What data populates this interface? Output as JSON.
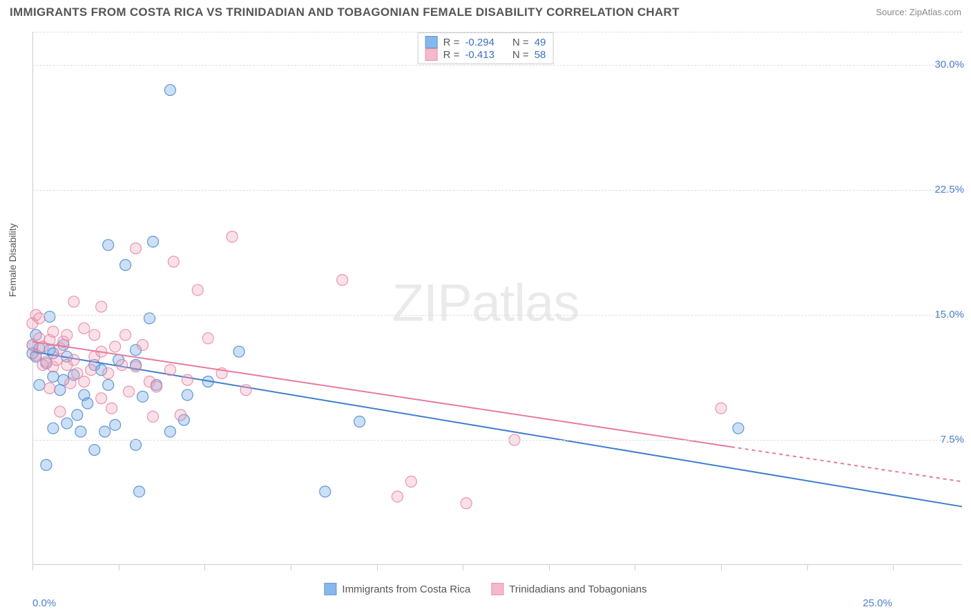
{
  "chart": {
    "type": "scatter",
    "title": "IMMIGRANTS FROM COSTA RICA VS TRINIDADIAN AND TOBAGONIAN FEMALE DISABILITY CORRELATION CHART",
    "source_label": "Source:",
    "source_link_text": "ZipAtlas.com",
    "ylabel": "Female Disability",
    "watermark": "ZIPatlas",
    "background_color": "#ffffff",
    "grid_color": "#dddddd",
    "axis_color": "#cccccc",
    "tick_label_color": "#4a7ec9",
    "label_color": "#555555",
    "title_fontsize": 17,
    "label_fontsize": 14,
    "tick_fontsize": 15,
    "xlim": [
      0,
      27
    ],
    "ylim": [
      0,
      32
    ],
    "yticks": [
      {
        "value": 7.5,
        "label": "7.5%"
      },
      {
        "value": 15.0,
        "label": "15.0%"
      },
      {
        "value": 22.5,
        "label": "22.5%"
      },
      {
        "value": 30.0,
        "label": "30.0%"
      }
    ],
    "xticks_minor_values": [
      0,
      2.5,
      5,
      7.5,
      10,
      12.5,
      15,
      17.5,
      20,
      22.5,
      25
    ],
    "xaxis_labels": [
      {
        "value": 0,
        "label": "0.0%"
      },
      {
        "value": 25,
        "label": "25.0%"
      }
    ],
    "marker_radius": 8,
    "marker_fill_opacity": 0.35,
    "regression_line_width": 2,
    "series": [
      {
        "id": "costa_rica",
        "name": "Immigrants from Costa Rica",
        "color": "#6aa6e8",
        "stroke": "#3f7ec9",
        "r_label": "R =",
        "r_value": "-0.294",
        "n_label": "N =",
        "n_value": "49",
        "regression": {
          "x1": 0,
          "y1": 12.8,
          "x2": 27,
          "y2": 3.5,
          "dashed_from_x": null
        },
        "points": [
          [
            0.0,
            12.7
          ],
          [
            0.0,
            13.2
          ],
          [
            0.1,
            12.5
          ],
          [
            0.1,
            13.8
          ],
          [
            0.2,
            10.8
          ],
          [
            0.2,
            13.0
          ],
          [
            0.4,
            6.0
          ],
          [
            0.4,
            12.1
          ],
          [
            0.5,
            14.9
          ],
          [
            0.5,
            12.9
          ],
          [
            0.6,
            8.2
          ],
          [
            0.6,
            11.3
          ],
          [
            0.6,
            12.7
          ],
          [
            0.8,
            10.5
          ],
          [
            0.9,
            11.1
          ],
          [
            0.9,
            13.2
          ],
          [
            1.0,
            8.5
          ],
          [
            1.0,
            12.5
          ],
          [
            1.2,
            11.4
          ],
          [
            1.3,
            9.0
          ],
          [
            1.4,
            8.0
          ],
          [
            1.5,
            10.2
          ],
          [
            1.6,
            9.7
          ],
          [
            1.8,
            6.9
          ],
          [
            1.8,
            12.0
          ],
          [
            2.0,
            11.7
          ],
          [
            2.1,
            8.0
          ],
          [
            2.2,
            10.8
          ],
          [
            2.2,
            19.2
          ],
          [
            2.4,
            8.4
          ],
          [
            2.5,
            12.3
          ],
          [
            2.7,
            18.0
          ],
          [
            3.0,
            7.2
          ],
          [
            3.0,
            12.0
          ],
          [
            3.0,
            12.9
          ],
          [
            3.1,
            4.4
          ],
          [
            3.2,
            10.1
          ],
          [
            3.4,
            14.8
          ],
          [
            3.5,
            19.4
          ],
          [
            3.6,
            10.8
          ],
          [
            4.0,
            8.0
          ],
          [
            4.0,
            28.5
          ],
          [
            4.4,
            8.7
          ],
          [
            4.5,
            10.2
          ],
          [
            5.1,
            11.0
          ],
          [
            6.0,
            12.8
          ],
          [
            8.5,
            4.4
          ],
          [
            9.5,
            8.6
          ],
          [
            20.5,
            8.2
          ]
        ]
      },
      {
        "id": "trinidad",
        "name": "Trinidadians and Tobagonians",
        "color": "#f2a8bd",
        "stroke": "#e77a9b",
        "r_label": "R =",
        "r_value": "-0.413",
        "n_label": "N =",
        "n_value": "58",
        "regression": {
          "x1": 0,
          "y1": 13.4,
          "x2": 27,
          "y2": 5.0,
          "dashed_from_x": 20.3
        },
        "points": [
          [
            0.0,
            13.2
          ],
          [
            0.0,
            14.5
          ],
          [
            0.1,
            12.6
          ],
          [
            0.1,
            15.0
          ],
          [
            0.2,
            13.6
          ],
          [
            0.2,
            14.8
          ],
          [
            0.3,
            12.0
          ],
          [
            0.3,
            13.1
          ],
          [
            0.4,
            12.2
          ],
          [
            0.5,
            10.6
          ],
          [
            0.5,
            13.5
          ],
          [
            0.6,
            11.9
          ],
          [
            0.6,
            14.0
          ],
          [
            0.7,
            12.3
          ],
          [
            0.8,
            9.2
          ],
          [
            0.8,
            13.0
          ],
          [
            0.9,
            13.4
          ],
          [
            1.0,
            12.0
          ],
          [
            1.0,
            13.8
          ],
          [
            1.1,
            10.9
          ],
          [
            1.2,
            12.3
          ],
          [
            1.2,
            15.8
          ],
          [
            1.3,
            11.5
          ],
          [
            1.5,
            11.0
          ],
          [
            1.5,
            14.2
          ],
          [
            1.7,
            11.7
          ],
          [
            1.8,
            12.5
          ],
          [
            1.8,
            13.8
          ],
          [
            2.0,
            10.0
          ],
          [
            2.0,
            12.8
          ],
          [
            2.0,
            15.5
          ],
          [
            2.2,
            11.5
          ],
          [
            2.3,
            9.4
          ],
          [
            2.4,
            13.1
          ],
          [
            2.6,
            12.0
          ],
          [
            2.7,
            13.8
          ],
          [
            2.8,
            10.4
          ],
          [
            3.0,
            11.9
          ],
          [
            3.0,
            19.0
          ],
          [
            3.2,
            13.2
          ],
          [
            3.4,
            11.0
          ],
          [
            3.5,
            8.9
          ],
          [
            3.6,
            10.7
          ],
          [
            4.0,
            11.7
          ],
          [
            4.1,
            18.2
          ],
          [
            4.3,
            9.0
          ],
          [
            4.5,
            11.1
          ],
          [
            4.8,
            16.5
          ],
          [
            5.1,
            13.6
          ],
          [
            5.5,
            11.5
          ],
          [
            5.8,
            19.7
          ],
          [
            6.2,
            10.5
          ],
          [
            9.0,
            17.1
          ],
          [
            10.6,
            4.1
          ],
          [
            11.0,
            5.0
          ],
          [
            12.6,
            3.7
          ],
          [
            14.0,
            7.5
          ],
          [
            20.0,
            9.4
          ]
        ]
      }
    ]
  }
}
